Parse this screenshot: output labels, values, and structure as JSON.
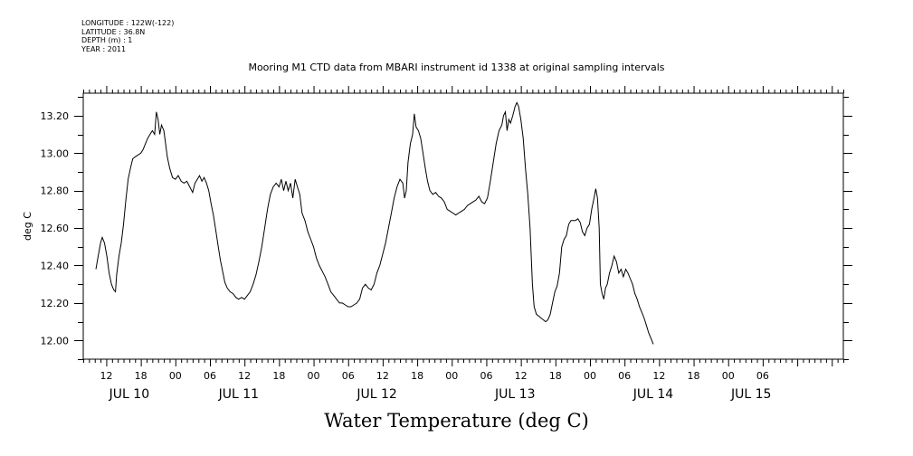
{
  "header": {
    "longitude": "LONGITUDE : 122W(-122)",
    "latitude": "LATITUDE : 36.8N",
    "depth": "DEPTH (m) : 1",
    "year": "YEAR : 2011"
  },
  "chart_data": {
    "type": "line",
    "title": "Mooring M1 CTD data from MBARI instrument id 1338 at original sampling intervals",
    "xlabel": "Water Temperature (deg C)",
    "ylabel": "deg C",
    "ylim": [
      11.9,
      13.32
    ],
    "yticks": [
      12.0,
      12.2,
      12.4,
      12.6,
      12.8,
      13.0,
      13.2
    ],
    "ytick_labels": [
      "12.00",
      "12.20",
      "12.40",
      "12.60",
      "12.80",
      "13.00",
      "13.20"
    ],
    "xlim_hours": [
      8,
      140
    ],
    "hour_tick_labels": [
      {
        "h": 12,
        "label": "12"
      },
      {
        "h": 18,
        "label": "18"
      },
      {
        "h": 24,
        "label": "00"
      },
      {
        "h": 30,
        "label": "06"
      },
      {
        "h": 36,
        "label": "12"
      },
      {
        "h": 42,
        "label": "18"
      },
      {
        "h": 48,
        "label": "00"
      },
      {
        "h": 54,
        "label": "06"
      },
      {
        "h": 60,
        "label": "12"
      },
      {
        "h": 66,
        "label": "18"
      },
      {
        "h": 72,
        "label": "00"
      },
      {
        "h": 78,
        "label": "06"
      },
      {
        "h": 84,
        "label": "12"
      },
      {
        "h": 90,
        "label": "18"
      },
      {
        "h": 96,
        "label": "00"
      },
      {
        "h": 102,
        "label": "06"
      },
      {
        "h": 108,
        "label": "12"
      },
      {
        "h": 114,
        "label": "18"
      },
      {
        "h": 120,
        "label": "00"
      },
      {
        "h": 126,
        "label": "06"
      }
    ],
    "date_labels": [
      {
        "h": 16,
        "label": "JUL 10"
      },
      {
        "h": 35,
        "label": "JUL 11"
      },
      {
        "h": 59,
        "label": "JUL 12"
      },
      {
        "h": 83,
        "label": "JUL 13"
      },
      {
        "h": 107,
        "label": "JUL 14"
      },
      {
        "h": 124,
        "label": "JUL 15"
      }
    ],
    "series": [
      {
        "values": [
          [
            10.2,
            12.38
          ],
          [
            10.6,
            12.45
          ],
          [
            11.0,
            12.52
          ],
          [
            11.3,
            12.55
          ],
          [
            11.7,
            12.52
          ],
          [
            12.1,
            12.45
          ],
          [
            12.5,
            12.36
          ],
          [
            12.9,
            12.3
          ],
          [
            13.3,
            12.27
          ],
          [
            13.6,
            12.26
          ],
          [
            13.8,
            12.35
          ],
          [
            14.2,
            12.45
          ],
          [
            14.6,
            12.52
          ],
          [
            15.0,
            12.62
          ],
          [
            15.4,
            12.75
          ],
          [
            15.8,
            12.86
          ],
          [
            16.2,
            12.92
          ],
          [
            16.6,
            12.97
          ],
          [
            17.0,
            12.98
          ],
          [
            17.5,
            12.99
          ],
          [
            18.0,
            13.0
          ],
          [
            18.4,
            13.02
          ],
          [
            18.8,
            13.05
          ],
          [
            19.2,
            13.08
          ],
          [
            19.6,
            13.1
          ],
          [
            20.0,
            13.12
          ],
          [
            20.4,
            13.1
          ],
          [
            20.7,
            13.22
          ],
          [
            21.0,
            13.18
          ],
          [
            21.3,
            13.1
          ],
          [
            21.6,
            13.15
          ],
          [
            22.0,
            13.12
          ],
          [
            22.3,
            13.05
          ],
          [
            22.6,
            12.98
          ],
          [
            23.0,
            12.92
          ],
          [
            23.5,
            12.87
          ],
          [
            24.0,
            12.86
          ],
          [
            24.5,
            12.88
          ],
          [
            25.0,
            12.85
          ],
          [
            25.5,
            12.84
          ],
          [
            26.0,
            12.85
          ],
          [
            26.5,
            12.82
          ],
          [
            27.0,
            12.79
          ],
          [
            27.4,
            12.84
          ],
          [
            27.8,
            12.86
          ],
          [
            28.2,
            12.88
          ],
          [
            28.6,
            12.85
          ],
          [
            29.0,
            12.87
          ],
          [
            29.4,
            12.84
          ],
          [
            29.8,
            12.8
          ],
          [
            30.2,
            12.73
          ],
          [
            30.6,
            12.67
          ],
          [
            31.0,
            12.59
          ],
          [
            31.4,
            12.51
          ],
          [
            31.8,
            12.43
          ],
          [
            32.2,
            12.37
          ],
          [
            32.6,
            12.31
          ],
          [
            33.0,
            12.28
          ],
          [
            33.5,
            12.26
          ],
          [
            34.0,
            12.25
          ],
          [
            34.5,
            12.23
          ],
          [
            35.0,
            12.22
          ],
          [
            35.5,
            12.23
          ],
          [
            36.0,
            12.22
          ],
          [
            36.5,
            12.24
          ],
          [
            37.0,
            12.26
          ],
          [
            37.5,
            12.3
          ],
          [
            38.0,
            12.35
          ],
          [
            38.5,
            12.42
          ],
          [
            39.0,
            12.5
          ],
          [
            39.5,
            12.6
          ],
          [
            40.0,
            12.7
          ],
          [
            40.5,
            12.78
          ],
          [
            41.0,
            12.82
          ],
          [
            41.5,
            12.84
          ],
          [
            42.0,
            12.82
          ],
          [
            42.4,
            12.86
          ],
          [
            42.8,
            12.8
          ],
          [
            43.2,
            12.85
          ],
          [
            43.6,
            12.8
          ],
          [
            44.0,
            12.84
          ],
          [
            44.4,
            12.76
          ],
          [
            44.8,
            12.86
          ],
          [
            45.2,
            12.82
          ],
          [
            45.6,
            12.78
          ],
          [
            46.0,
            12.68
          ],
          [
            46.5,
            12.64
          ],
          [
            47.0,
            12.58
          ],
          [
            47.5,
            12.54
          ],
          [
            48.0,
            12.5
          ],
          [
            48.5,
            12.44
          ],
          [
            49.0,
            12.4
          ],
          [
            49.5,
            12.37
          ],
          [
            50.0,
            12.34
          ],
          [
            50.5,
            12.3
          ],
          [
            51.0,
            12.26
          ],
          [
            51.5,
            12.24
          ],
          [
            52.0,
            12.22
          ],
          [
            52.5,
            12.2
          ],
          [
            53.0,
            12.2
          ],
          [
            53.5,
            12.19
          ],
          [
            54.0,
            12.18
          ],
          [
            54.5,
            12.18
          ],
          [
            55.0,
            12.19
          ],
          [
            55.5,
            12.2
          ],
          [
            56.0,
            12.22
          ],
          [
            56.5,
            12.28
          ],
          [
            57.0,
            12.3
          ],
          [
            57.5,
            12.28
          ],
          [
            58.0,
            12.27
          ],
          [
            58.5,
            12.3
          ],
          [
            59.0,
            12.36
          ],
          [
            59.5,
            12.4
          ],
          [
            60.0,
            12.46
          ],
          [
            60.5,
            12.52
          ],
          [
            61.0,
            12.6
          ],
          [
            61.5,
            12.68
          ],
          [
            62.0,
            12.76
          ],
          [
            62.5,
            12.82
          ],
          [
            63.0,
            12.86
          ],
          [
            63.5,
            12.84
          ],
          [
            63.8,
            12.76
          ],
          [
            64.1,
            12.8
          ],
          [
            64.4,
            12.95
          ],
          [
            64.8,
            13.05
          ],
          [
            65.2,
            13.1
          ],
          [
            65.5,
            13.21
          ],
          [
            65.8,
            13.14
          ],
          [
            66.2,
            13.12
          ],
          [
            66.6,
            13.08
          ],
          [
            67.0,
            13.0
          ],
          [
            67.4,
            12.92
          ],
          [
            67.8,
            12.85
          ],
          [
            68.2,
            12.8
          ],
          [
            68.7,
            12.78
          ],
          [
            69.2,
            12.79
          ],
          [
            69.7,
            12.77
          ],
          [
            70.2,
            12.76
          ],
          [
            70.7,
            12.74
          ],
          [
            71.2,
            12.7
          ],
          [
            71.7,
            12.69
          ],
          [
            72.2,
            12.68
          ],
          [
            72.7,
            12.67
          ],
          [
            73.2,
            12.68
          ],
          [
            73.7,
            12.69
          ],
          [
            74.2,
            12.7
          ],
          [
            74.7,
            12.72
          ],
          [
            75.2,
            12.73
          ],
          [
            75.7,
            12.74
          ],
          [
            76.2,
            12.75
          ],
          [
            76.7,
            12.77
          ],
          [
            77.2,
            12.74
          ],
          [
            77.7,
            12.73
          ],
          [
            78.2,
            12.76
          ],
          [
            78.7,
            12.85
          ],
          [
            79.2,
            12.95
          ],
          [
            79.7,
            13.05
          ],
          [
            80.2,
            13.12
          ],
          [
            80.7,
            13.15
          ],
          [
            81.0,
            13.2
          ],
          [
            81.3,
            13.22
          ],
          [
            81.6,
            13.12
          ],
          [
            81.9,
            13.18
          ],
          [
            82.2,
            13.16
          ],
          [
            82.6,
            13.2
          ],
          [
            83.0,
            13.25
          ],
          [
            83.3,
            13.27
          ],
          [
            83.6,
            13.25
          ],
          [
            84.0,
            13.18
          ],
          [
            84.4,
            13.08
          ],
          [
            84.8,
            12.92
          ],
          [
            85.2,
            12.78
          ],
          [
            85.6,
            12.6
          ],
          [
            86.0,
            12.3
          ],
          [
            86.3,
            12.18
          ],
          [
            86.7,
            12.14
          ],
          [
            87.1,
            12.13
          ],
          [
            87.5,
            12.12
          ],
          [
            87.9,
            12.11
          ],
          [
            88.3,
            12.1
          ],
          [
            88.7,
            12.11
          ],
          [
            89.1,
            12.14
          ],
          [
            89.5,
            12.2
          ],
          [
            89.9,
            12.26
          ],
          [
            90.3,
            12.29
          ],
          [
            90.7,
            12.36
          ],
          [
            91.1,
            12.5
          ],
          [
            91.5,
            12.54
          ],
          [
            91.9,
            12.56
          ],
          [
            92.3,
            12.62
          ],
          [
            92.7,
            12.64
          ],
          [
            93.1,
            12.64
          ],
          [
            93.5,
            12.64
          ],
          [
            93.9,
            12.65
          ],
          [
            94.3,
            12.63
          ],
          [
            94.7,
            12.58
          ],
          [
            95.1,
            12.56
          ],
          [
            95.5,
            12.6
          ],
          [
            95.9,
            12.62
          ],
          [
            96.3,
            12.7
          ],
          [
            96.7,
            12.76
          ],
          [
            97.0,
            12.81
          ],
          [
            97.3,
            12.76
          ],
          [
            97.6,
            12.6
          ],
          [
            97.8,
            12.3
          ],
          [
            98.1,
            12.25
          ],
          [
            98.4,
            12.22
          ],
          [
            98.7,
            12.28
          ],
          [
            99.0,
            12.3
          ],
          [
            99.4,
            12.36
          ],
          [
            99.8,
            12.4
          ],
          [
            100.2,
            12.45
          ],
          [
            100.6,
            12.42
          ],
          [
            101.0,
            12.36
          ],
          [
            101.4,
            12.38
          ],
          [
            101.8,
            12.34
          ],
          [
            102.2,
            12.38
          ],
          [
            102.6,
            12.36
          ],
          [
            103.0,
            12.33
          ],
          [
            103.4,
            12.3
          ],
          [
            103.8,
            12.25
          ],
          [
            104.2,
            12.22
          ],
          [
            104.6,
            12.18
          ],
          [
            105.0,
            12.15
          ],
          [
            105.4,
            12.12
          ],
          [
            105.8,
            12.08
          ],
          [
            106.2,
            12.04
          ],
          [
            106.6,
            12.01
          ],
          [
            107.0,
            11.98
          ]
        ]
      }
    ]
  }
}
